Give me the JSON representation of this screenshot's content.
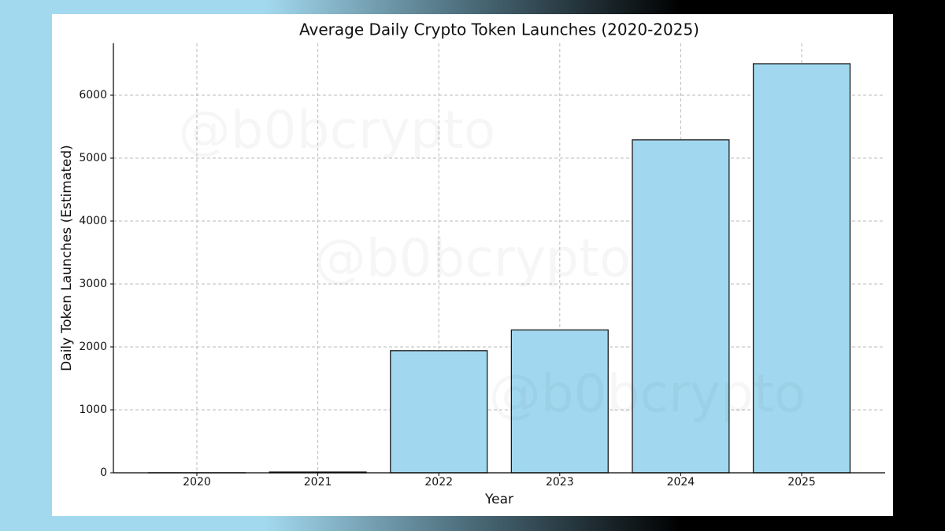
{
  "chart_data": {
    "type": "bar",
    "title": "Average Daily Crypto Token Launches (2020-2025)",
    "x_label": "Year",
    "y_label": "Daily Token Launches (Estimated)",
    "categories": [
      "2020",
      "2021",
      "2022",
      "2023",
      "2024",
      "2025"
    ],
    "values": [
      1,
      12,
      1940,
      2270,
      5290,
      6500
    ],
    "color": "#a1d8ef",
    "edge_color": "#1a1a1a",
    "ylim": [
      0,
      6825
    ],
    "yticks": [
      0,
      1000,
      2000,
      3000,
      4000,
      5000,
      6000
    ],
    "grid": true,
    "watermark": "@b0bcrypto"
  }
}
